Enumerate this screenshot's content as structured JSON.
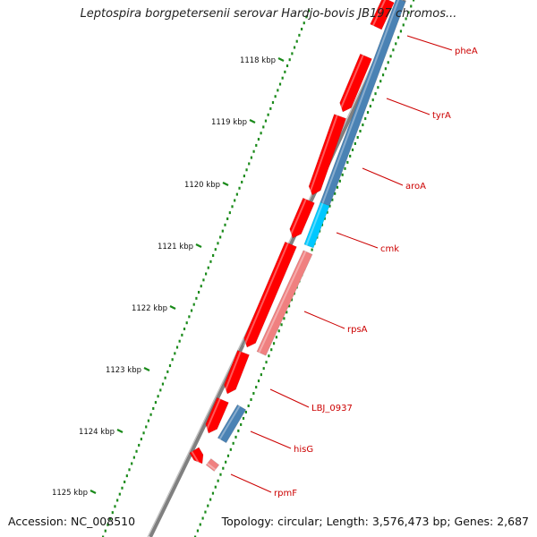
{
  "title": "Leptospira borgpetersenii serovar Hardjo-bovis JB197 chromos...",
  "footer": {
    "accession": "Accession: NC_008510",
    "topology": "Topology: circular; Length: 3,576,473 bp; Genes: 2,687"
  },
  "ticks": [
    "1118 kbp",
    "1119 kbp",
    "1120 kbp",
    "1121 kbp",
    "1122 kbp",
    "1123 kbp",
    "1124 kbp",
    "1125 kbp"
  ],
  "genes": [
    "pheA",
    "tyrA",
    "aroA",
    "cmk",
    "rpsA",
    "LBJ_0937",
    "hisG",
    "rpmF"
  ],
  "colors": {
    "backbone": "#808080",
    "tick_dots": "#1a8a1a",
    "forward_gene": "#ff0000",
    "forward_gene_light": "#f08080",
    "reverse_gene": "#4a82b4",
    "highlight_gene": "#00c8ff",
    "label": "#cc0000"
  }
}
